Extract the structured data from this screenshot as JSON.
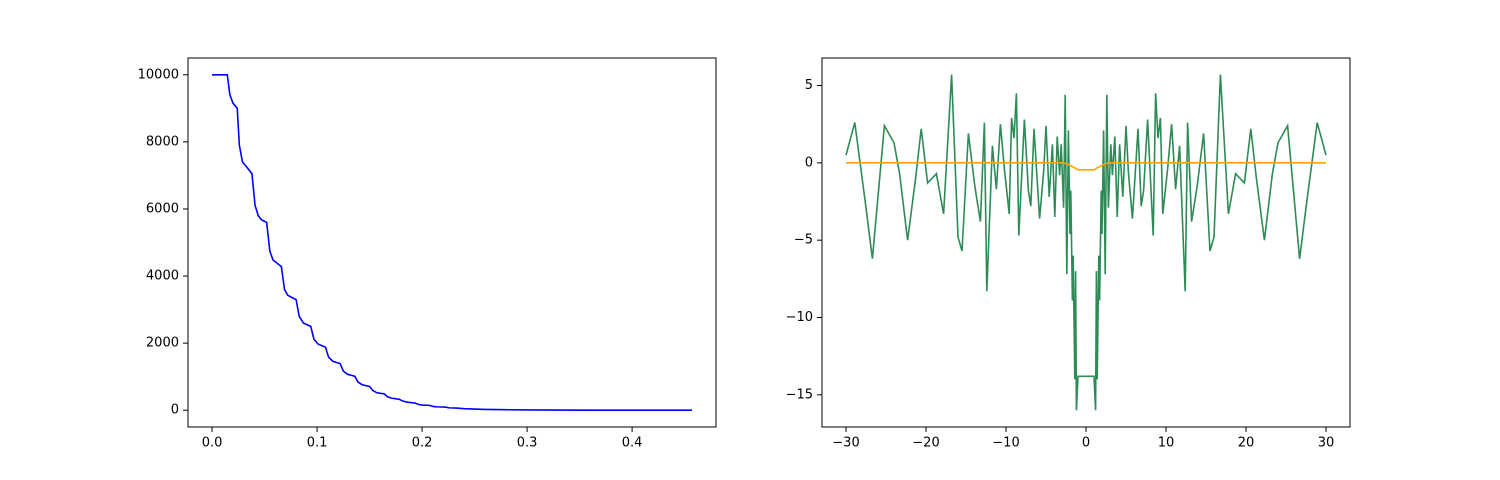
{
  "chart_data": [
    {
      "type": "line",
      "xlim": [
        -0.0229,
        0.4799
      ],
      "ylim": [
        -500,
        10500
      ],
      "xticks": [
        {
          "value": 0,
          "label": "0.0"
        },
        0.1,
        0.2,
        0.3,
        0.4
      ],
      "yticks": [
        0,
        2000,
        4000,
        6000,
        8000,
        10000
      ],
      "series": [
        {
          "color": "#0000ff",
          "x": [
            0,
            0.0145,
            0.017,
            0.02,
            0.024,
            0.026,
            0.029,
            0.033,
            0.038,
            0.041,
            0.044,
            0.047,
            0.052,
            0.055,
            0.058,
            0.062,
            0.066,
            0.069,
            0.072,
            0.076,
            0.08,
            0.083,
            0.087,
            0.091,
            0.094,
            0.097,
            0.101,
            0.105,
            0.108,
            0.111,
            0.115,
            0.119,
            0.122,
            0.125,
            0.129,
            0.133,
            0.136,
            0.139,
            0.143,
            0.147,
            0.15,
            0.153,
            0.157,
            0.161,
            0.164,
            0.167,
            0.171,
            0.175,
            0.178,
            0.182,
            0.186,
            0.19,
            0.193,
            0.197,
            0.2,
            0.207,
            0.211,
            0.215,
            0.222,
            0.226,
            0.233,
            0.24,
            0.25,
            0.26,
            0.28,
            0.3,
            0.33,
            0.36,
            0.4,
            0.457
          ],
          "values": [
            10000,
            10000,
            9400,
            9150,
            9000,
            7900,
            7400,
            7250,
            7050,
            6100,
            5800,
            5680,
            5600,
            4750,
            4480,
            4380,
            4280,
            3600,
            3430,
            3360,
            3300,
            2800,
            2600,
            2540,
            2500,
            2120,
            1970,
            1920,
            1880,
            1580,
            1460,
            1420,
            1390,
            1170,
            1070,
            1040,
            1010,
            840,
            760,
            730,
            710,
            590,
            520,
            500,
            490,
            400,
            360,
            340,
            330,
            270,
            240,
            225,
            215,
            170,
            155,
            145,
            110,
            100,
            95,
            70,
            65,
            45,
            35,
            25,
            15,
            8,
            4,
            2,
            1,
            0
          ]
        }
      ]
    },
    {
      "type": "line",
      "xlim": [
        -33,
        33
      ],
      "ylim": [
        -17.08,
        6.78
      ],
      "xticks": [
        {
          "value": -30,
          "label": "−30"
        },
        {
          "value": -20,
          "label": "−20"
        },
        {
          "value": -10,
          "label": "−10"
        },
        0,
        10,
        20,
        30
      ],
      "yticks": [
        {
          "value": -15,
          "label": "−15"
        },
        {
          "value": -10,
          "label": "−10"
        },
        {
          "value": -5,
          "label": "−5"
        },
        0,
        5
      ],
      "series": [
        {
          "color": "#2e8b57",
          "x": [
            -30,
            -28.9,
            -27.5,
            -26.7,
            -25.2,
            -24,
            -23.3,
            -22.3,
            -21.3,
            -20.6,
            -19.8,
            -18.7,
            -17.8,
            -16.8,
            -16,
            -15.5,
            -14.7,
            -13.9,
            -13.2,
            -12.7,
            -12.4,
            -11.7,
            -11.2,
            -10.7,
            -10.2,
            -9.6,
            -9.3,
            -9,
            -8.7,
            -8.4,
            -7.7,
            -7.2,
            -6.9,
            -6.5,
            -6.2,
            -5.8,
            -5.3,
            -5,
            -4.6,
            -4.2,
            -3.9,
            -3.6,
            -3.3,
            -3.1,
            -2.8,
            -2.6,
            -2.4,
            -2.2,
            -2,
            -1.9,
            -1.7,
            -1.6,
            -1.4,
            -1.3,
            -1.2,
            -1,
            1,
            1.2,
            1.3,
            1.4,
            1.6,
            1.7,
            1.9,
            2,
            2.2,
            2.4,
            2.6,
            2.8,
            3.1,
            3.3,
            3.6,
            3.9,
            4.2,
            4.6,
            5,
            5.3,
            5.8,
            6.2,
            6.5,
            6.9,
            7.2,
            7.7,
            8.4,
            8.7,
            9,
            9.3,
            9.6,
            10.2,
            10.7,
            11.2,
            11.7,
            12.4,
            12.7,
            13.2,
            13.9,
            14.7,
            15.5,
            16,
            16.8,
            17.8,
            18.7,
            19.8,
            20.6,
            21.3,
            22.3,
            23.3,
            24,
            25.2,
            26.7,
            27.5,
            28.9,
            30
          ],
          "values": [
            0.5,
            2.6,
            -2.9,
            -6.2,
            2.4,
            1.3,
            -0.7,
            -5,
            -1,
            2.2,
            -1.3,
            -0.7,
            -3.3,
            5.7,
            -4.8,
            -5.7,
            1.9,
            -1.5,
            -3.8,
            2.6,
            -8.3,
            1.1,
            -1.7,
            2.5,
            -0.4,
            -3.3,
            2.9,
            1.6,
            4.5,
            -4.7,
            2.8,
            -1.8,
            -2.8,
            2.2,
            -0.3,
            -3.6,
            -0.6,
            2.4,
            -2.2,
            1.2,
            -3.5,
            1.7,
            -0.8,
            1.2,
            -2.9,
            4.4,
            -7.2,
            2.1,
            -4.6,
            -1.8,
            -8.9,
            -6,
            -14,
            -7,
            -16,
            -13.8,
            -13.8,
            -16,
            -7,
            -14,
            -6,
            -8.9,
            -1.8,
            -4.6,
            2.1,
            -7.2,
            4.4,
            -2.9,
            1.2,
            -0.8,
            1.7,
            -3.5,
            1.2,
            -2.2,
            2.4,
            -0.6,
            -3.6,
            -0.3,
            2.2,
            -2.8,
            -1.8,
            2.8,
            -4.7,
            4.5,
            1.6,
            2.9,
            -3.3,
            -0.4,
            2.5,
            -1.7,
            1.1,
            -8.3,
            2.6,
            -3.8,
            -1.5,
            1.9,
            -5.7,
            -4.8,
            5.7,
            -3.3,
            -0.7,
            -1.3,
            2.2,
            -1,
            -5,
            -0.7,
            1.3,
            2.4,
            -6.2,
            -2.9,
            2.6,
            0.5
          ]
        },
        {
          "color": "#ffa500",
          "x": [
            -30,
            -3,
            -2.5,
            -2,
            -1.5,
            -1,
            1,
            1.5,
            2,
            2.5,
            3,
            30
          ],
          "values": [
            0,
            0,
            -0.05,
            -0.15,
            -0.3,
            -0.45,
            -0.45,
            -0.3,
            -0.15,
            -0.05,
            0,
            0
          ]
        }
      ]
    }
  ]
}
